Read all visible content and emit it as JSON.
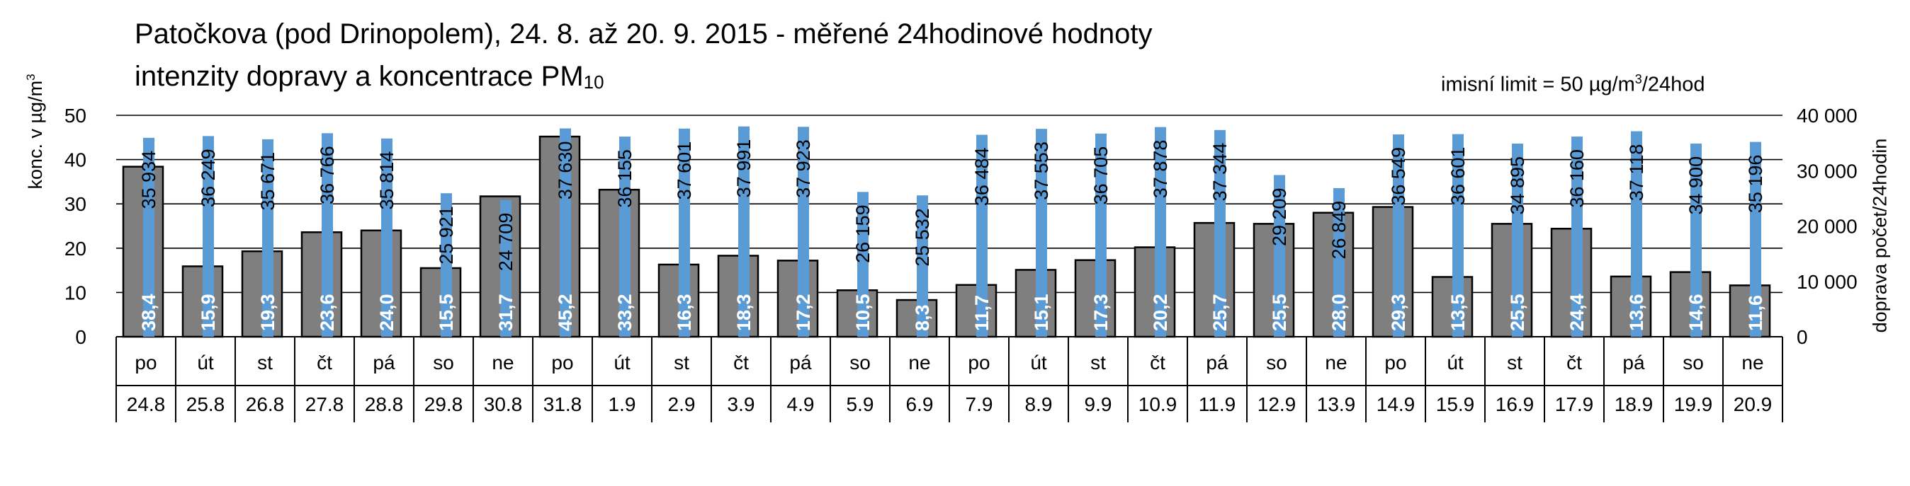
{
  "title_line1": "Patočkova (pod Drinopolem), 24. 8. až 20. 9. 2015 - měřené 24hodinové hodnoty",
  "title_line2_main": "intenzity dopravy a koncentrace PM",
  "title_line2_sub": "10",
  "limit_prefix": "imisní limit = 50 µg/m",
  "limit_sup": "3",
  "limit_suffix": "/24hod",
  "ylabel_left_main": "konc. v µg/m",
  "ylabel_left_sup": "3",
  "ylabel_right": "doprava počet/24hodin",
  "colors": {
    "pm10_bar": "#7f7f7f",
    "traffic_bar": "#5b9bd5",
    "gridline": "#000000",
    "label_on_pm": "#ffffff"
  },
  "chart_data": {
    "type": "bar",
    "days": [
      "po",
      "út",
      "st",
      "čt",
      "pá",
      "so",
      "ne",
      "po",
      "út",
      "st",
      "čt",
      "pá",
      "so",
      "ne",
      "po",
      "út",
      "st",
      "čt",
      "pá",
      "so",
      "ne",
      "po",
      "út",
      "st",
      "čt",
      "pá",
      "so",
      "ne"
    ],
    "dates": [
      "24.8",
      "25.8",
      "26.8",
      "27.8",
      "28.8",
      "29.8",
      "30.8",
      "31.8",
      "1.9",
      "2.9",
      "3.9",
      "4.9",
      "5.9",
      "6.9",
      "7.9",
      "8.9",
      "9.9",
      "10.9",
      "11.9",
      "12.9",
      "13.9",
      "14.9",
      "15.9",
      "16.9",
      "17.9",
      "18.9",
      "19.9",
      "20.9"
    ],
    "series": [
      {
        "name": "PM10",
        "axis": "left",
        "values": [
          38.4,
          15.9,
          19.3,
          23.6,
          24.0,
          15.5,
          31.7,
          45.2,
          33.2,
          16.3,
          18.3,
          17.2,
          10.5,
          8.3,
          11.7,
          15.1,
          17.3,
          20.2,
          25.7,
          25.5,
          28.0,
          29.3,
          13.5,
          25.5,
          24.4,
          13.6,
          14.6,
          11.6
        ],
        "labels": [
          "38,4",
          "15,9",
          "19,3",
          "23,6",
          "24,0",
          "15,5",
          "31,7",
          "45,2",
          "33,2",
          "16,3",
          "18,3",
          "17,2",
          "10,5",
          "8,3",
          "11,7",
          "15,1",
          "17,3",
          "20,2",
          "25,7",
          "25,5",
          "28,0",
          "29,3",
          "13,5",
          "25,5",
          "24,4",
          "13,6",
          "14,6",
          "11,6"
        ]
      },
      {
        "name": "doprava",
        "axis": "right",
        "values": [
          35934,
          36249,
          35671,
          36766,
          35814,
          25921,
          24709,
          37630,
          36155,
          37601,
          37991,
          37923,
          26159,
          25532,
          36484,
          37553,
          36705,
          37878,
          37344,
          29209,
          26849,
          36549,
          36601,
          34895,
          36160,
          37118,
          34900,
          35196
        ],
        "labels": [
          "35 934",
          "36 249",
          "35 671",
          "36 766",
          "35 814",
          "25 921",
          "24 709",
          "37 630",
          "36 155",
          "37 601",
          "37 991",
          "37 923",
          "26 159",
          "25 532",
          "36 484",
          "37 553",
          "36 705",
          "37 878",
          "37 344",
          "29 209",
          "26 849",
          "36 549",
          "36 601",
          "34 895",
          "36 160",
          "37 118",
          "34 900",
          "35 196"
        ]
      }
    ],
    "ylim_left": [
      0,
      50
    ],
    "yticks_left": [
      "0",
      "10",
      "20",
      "30",
      "40",
      "50"
    ],
    "ylim_right": [
      0,
      40000
    ],
    "yticks_right": [
      "0",
      "10 000",
      "20 000",
      "30 000",
      "40 000"
    ],
    "grid": true
  }
}
